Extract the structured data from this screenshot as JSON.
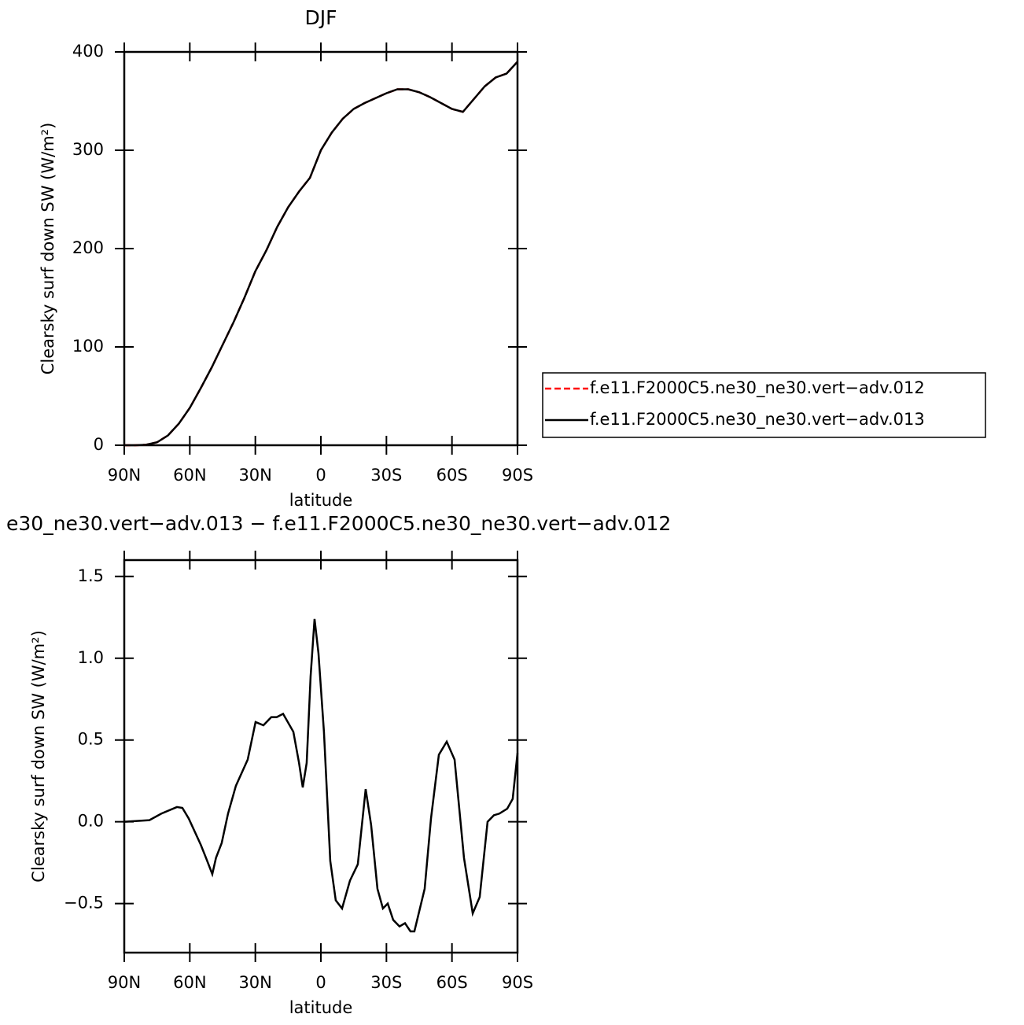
{
  "chart_data": [
    {
      "type": "line",
      "title": "DJF",
      "xlabel": "latitude",
      "ylabel": "Clearsky surf down SW (W/m²)",
      "x": [
        90,
        85,
        80,
        75,
        70,
        65,
        60,
        55,
        50,
        45,
        40,
        35,
        30,
        25,
        20,
        15,
        10,
        5,
        0,
        -5,
        -10,
        -15,
        -20,
        -25,
        -30,
        -35,
        -40,
        -45,
        -50,
        -55,
        -60,
        -65,
        -70,
        -75,
        -80,
        -85,
        -90
      ],
      "series": [
        {
          "name": "f.e11.F2000C5.ne30_ne30.vert−adv.012",
          "color": "#ff0000",
          "linestyle": "dashed",
          "values": [
            0,
            0,
            0.5,
            3,
            10,
            22,
            38,
            58,
            79,
            102,
            125,
            150,
            177,
            198,
            222,
            242,
            258,
            272,
            300,
            318,
            332,
            342,
            348,
            353,
            358,
            362,
            362,
            359,
            354,
            348,
            342,
            339,
            352,
            365,
            374,
            378,
            390
          ]
        },
        {
          "name": "f.e11.F2000C5.ne30_ne30.vert−adv.013",
          "color": "#000000",
          "linestyle": "solid",
          "values": [
            0,
            0,
            0.5,
            3,
            10,
            22,
            38,
            58,
            79,
            102,
            125,
            150,
            177,
            198,
            222,
            242,
            258,
            272,
            300,
            318,
            332,
            342,
            348,
            353,
            358,
            362,
            362,
            359,
            354,
            348,
            342,
            339,
            352,
            365,
            374,
            378,
            390
          ]
        }
      ],
      "xlim": [
        90,
        -90
      ],
      "xticks": [
        {
          "value": 90,
          "label": "90N"
        },
        {
          "value": 60,
          "label": "60N"
        },
        {
          "value": 30,
          "label": "30N"
        },
        0,
        {
          "value": -30,
          "label": "30S"
        },
        {
          "value": -60,
          "label": "60S"
        },
        {
          "value": -90,
          "label": "90S"
        }
      ],
      "ylim": [
        0,
        400
      ],
      "yticks": [
        0,
        100,
        200,
        300,
        400
      ],
      "legend": "right"
    },
    {
      "type": "line",
      "title": "e30_ne30.vert−adv.013 − f.e11.F2000C5.ne30_ne30.vert−adv.012",
      "xlabel": "latitude",
      "ylabel": "Clearsky surf down SW (W/m²)",
      "x": [
        90,
        78.5,
        73,
        65.9,
        63.4,
        60.5,
        55,
        52.6,
        49.7,
        48,
        45.4,
        42.5,
        38.9,
        33.5,
        29.9,
        26.3,
        22.7,
        20.2,
        17.3,
        12.6,
        10,
        8.3,
        6.5,
        4.7,
        2.9,
        1.1,
        -1.4,
        -4.3,
        -6.8,
        -9.7,
        -13.3,
        -16.9,
        -20.5,
        -23,
        -25.9,
        -28.4,
        -30.6,
        -33.1,
        -36,
        -38.5,
        -41,
        -42.8,
        -47.5,
        -50.4,
        -54,
        -57.6,
        -61.2,
        -65.5,
        -69.5,
        -72.7,
        -76.3,
        -79.2,
        -81.7,
        -85.3,
        -87.8,
        -90
      ],
      "series": [
        {
          "color": "#000000",
          "linestyle": "solid",
          "values": [
            0,
            0.01,
            0.05,
            0.09,
            0.085,
            0.02,
            -0.14,
            -0.22,
            -0.32,
            -0.22,
            -0.13,
            0.05,
            0.22,
            0.38,
            0.61,
            0.59,
            0.64,
            0.64,
            0.66,
            0.55,
            0.36,
            0.21,
            0.36,
            0.89,
            1.24,
            1.03,
            0.55,
            -0.24,
            -0.48,
            -0.53,
            -0.36,
            -0.26,
            0.2,
            -0.02,
            -0.41,
            -0.53,
            -0.5,
            -0.6,
            -0.64,
            -0.62,
            -0.67,
            -0.67,
            -0.41,
            0.02,
            0.41,
            0.49,
            0.38,
            -0.22,
            -0.56,
            -0.46,
            0,
            0.04,
            0.05,
            0.08,
            0.14,
            0.42
          ]
        }
      ],
      "xlim": [
        90,
        -90
      ],
      "xticks": [
        {
          "value": 90,
          "label": "90N"
        },
        {
          "value": 60,
          "label": "60N"
        },
        {
          "value": 30,
          "label": "30N"
        },
        0,
        {
          "value": -30,
          "label": "30S"
        },
        {
          "value": -60,
          "label": "60S"
        },
        {
          "value": -90,
          "label": "90S"
        }
      ],
      "ylim": [
        -0.8,
        1.6
      ],
      "yticks": [
        {
          "value": -0.5,
          "label": "−0.5"
        },
        {
          "value": 0,
          "label": "0.0"
        },
        0.5,
        {
          "value": 1,
          "label": "1.0"
        },
        1.5
      ]
    }
  ]
}
